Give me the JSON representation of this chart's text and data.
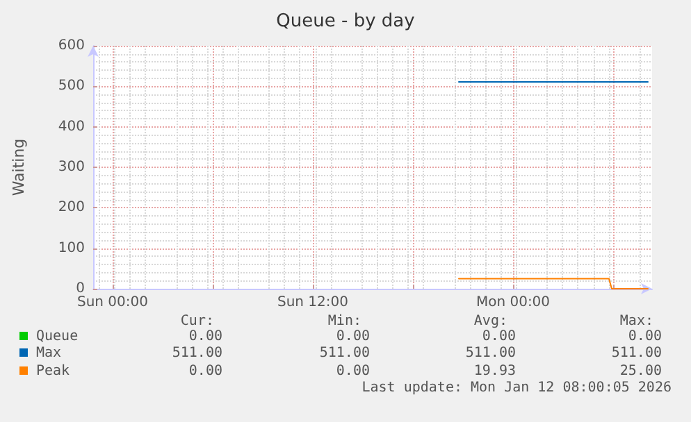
{
  "chart_data": {
    "type": "line",
    "title": "Queue - by day",
    "ylabel": "Waiting",
    "xlim": [
      "2026-01-10T22:50",
      "2026-01-12T08:20"
    ],
    "xticks": [
      {
        "value": "2026-01-11T00:00",
        "label": "Sun 00:00"
      },
      {
        "value": "2026-01-11T06:00",
        "label": null
      },
      {
        "value": "2026-01-11T12:00",
        "label": "Sun 12:00"
      },
      {
        "value": "2026-01-11T18:00",
        "label": null
      },
      {
        "value": "2026-01-12T00:00",
        "label": "Mon 00:00"
      },
      {
        "value": "2026-01-12T06:00",
        "label": null
      }
    ],
    "ylim": [
      0,
      600
    ],
    "yticks": [
      0,
      100,
      200,
      300,
      400,
      500,
      600
    ],
    "grid": true,
    "legend": "bottom",
    "marker": "none",
    "line_style": "solid",
    "series": [
      {
        "name": "Queue",
        "color": "#00cc00"
      },
      {
        "name": "Max",
        "color": "#0066b3",
        "x": [
          "2026-01-11T20:45",
          "2026-01-12T08:05"
        ],
        "values": [
          511,
          511
        ]
      },
      {
        "name": "Peak",
        "color": "#ff8000",
        "x": [
          "2026-01-11T20:45",
          "2026-01-12T05:45",
          "2026-01-12T05:55",
          "2026-01-12T08:05"
        ],
        "values": [
          25,
          25,
          0,
          0
        ]
      }
    ],
    "annotations": [
      "Cur:",
      "Min:",
      "Avg:",
      "Max:",
      "0.00",
      "0.00",
      "0.00",
      "0.00",
      "511.00",
      "511.00",
      "511.00",
      "511.00",
      "0.00",
      "0.00",
      "19.93",
      "25.00",
      "Last update: Mon Jan 12 08:00:05 2026"
    ]
  }
}
